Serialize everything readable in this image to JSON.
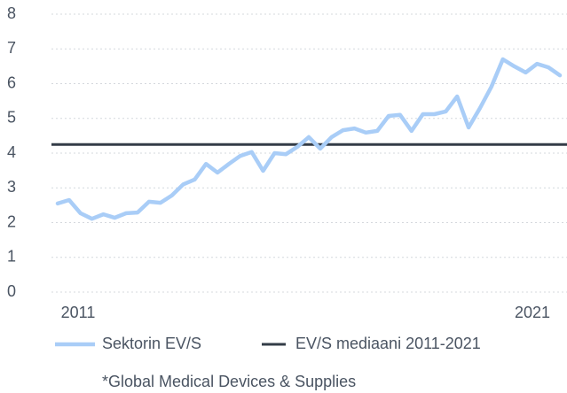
{
  "chart_data": {
    "type": "line",
    "categories": [
      "2011",
      null,
      null,
      null,
      null,
      null,
      null,
      null,
      null,
      null,
      null,
      null,
      null,
      null,
      null,
      null,
      null,
      null,
      null,
      null,
      null,
      null,
      null,
      null,
      null,
      null,
      null,
      null,
      null,
      null,
      null,
      null,
      null,
      null,
      null,
      null,
      null,
      null,
      null,
      null,
      null,
      null,
      null,
      null,
      "2021"
    ],
    "series": [
      {
        "name": "Sektorin EV/S",
        "color": "#a9cdf7",
        "values": [
          2.55,
          2.65,
          2.27,
          2.11,
          2.24,
          2.14,
          2.27,
          2.29,
          2.6,
          2.57,
          2.78,
          3.1,
          3.24,
          3.69,
          3.44,
          3.69,
          3.92,
          4.03,
          3.49,
          4.0,
          3.97,
          4.18,
          4.46,
          4.13,
          4.46,
          4.66,
          4.71,
          4.59,
          4.64,
          5.07,
          5.1,
          4.64,
          5.12,
          5.12,
          5.2,
          5.63,
          4.74,
          5.3,
          5.91,
          6.7,
          6.5,
          6.32,
          6.57,
          6.47,
          6.24
        ]
      }
    ],
    "reference_line": {
      "name": "EV/S mediaani 2011-2021",
      "value": 4.25,
      "color": "#333c47"
    },
    "ylim": [
      0,
      8
    ],
    "yticks": [
      0,
      1,
      2,
      3,
      4,
      5,
      6,
      7,
      8
    ],
    "grid": true,
    "legend": "bottom",
    "footnote": "*Global Medical Devices & Supplies"
  }
}
